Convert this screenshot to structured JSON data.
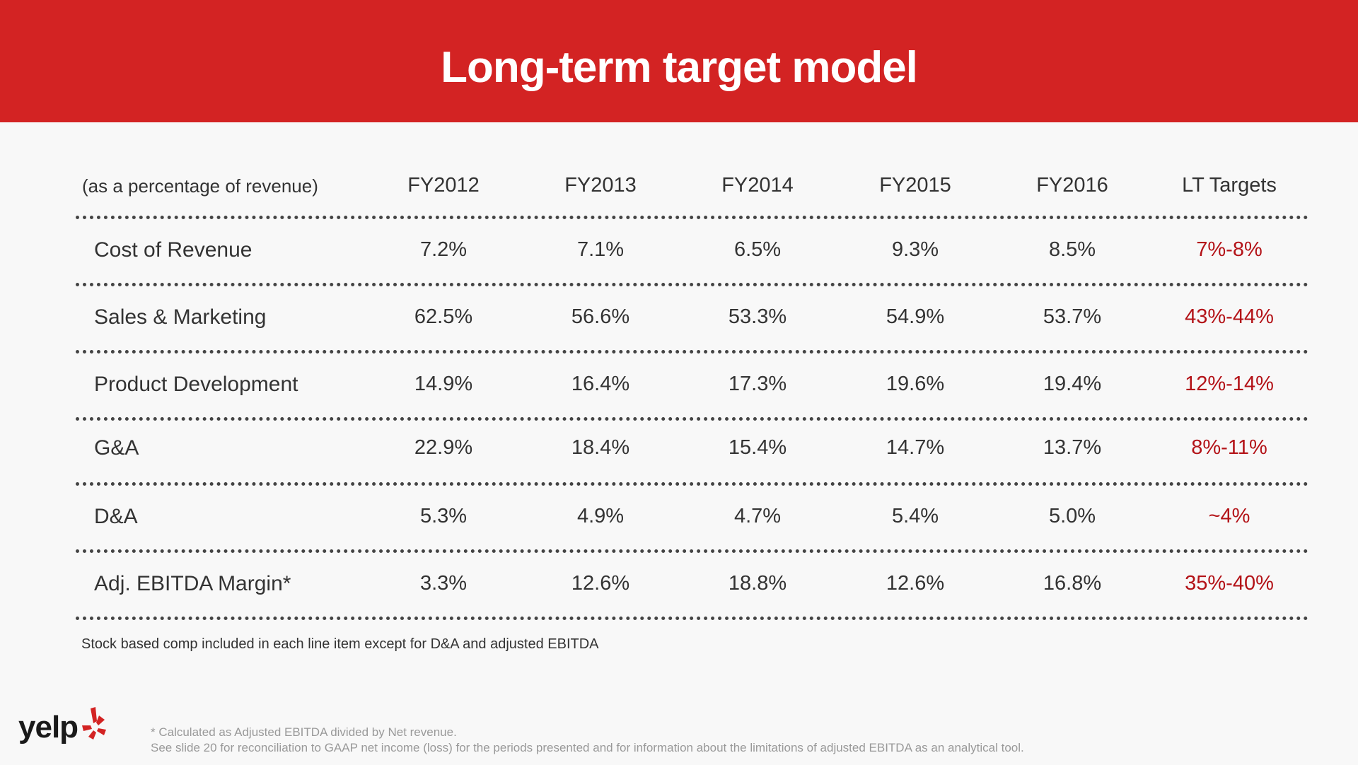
{
  "slide": {
    "title": "Long-term target model"
  },
  "table": {
    "headers": [
      "(as a percentage of revenue)",
      "FY2012",
      "FY2013",
      "FY2014",
      "FY2015",
      "FY2016",
      "LT Targets"
    ],
    "rows": [
      {
        "label": "Cost of Revenue",
        "values": [
          "7.2%",
          "7.1%",
          "6.5%",
          "9.3%",
          "8.5%"
        ],
        "target": "7%-8%"
      },
      {
        "label": "Sales & Marketing",
        "values": [
          "62.5%",
          "56.6%",
          "53.3%",
          "54.9%",
          "53.7%"
        ],
        "target": "43%-44%"
      },
      {
        "label": "Product Development",
        "values": [
          "14.9%",
          "16.4%",
          "17.3%",
          "19.6%",
          "19.4%"
        ],
        "target": "12%-14%"
      },
      {
        "label": "G&A",
        "values": [
          "22.9%",
          "18.4%",
          "15.4%",
          "14.7%",
          "13.7%"
        ],
        "target": "8%-11%"
      },
      {
        "label": "D&A",
        "values": [
          "5.3%",
          "4.9%",
          "4.7%",
          "5.4%",
          "5.0%"
        ],
        "target": "~4%"
      },
      {
        "label": "Adj. EBITDA Margin*",
        "values": [
          "3.3%",
          "12.6%",
          "18.8%",
          "12.6%",
          "16.8%"
        ],
        "target": "35%-40%"
      }
    ]
  },
  "note": "Stock based comp included in each line item except for D&A and adjusted EBITDA",
  "footnotes": [
    "* Calculated as Adjusted EBITDA divided by Net revenue.",
    "See slide 20 for reconciliation to GAAP net income (loss) for the periods presented and for information about the limitations of adjusted EBITDA as an analytical tool."
  ],
  "logo": {
    "text": "yelp",
    "icon": "yelp-burst-icon"
  },
  "colors": {
    "brand_red": "#d32323",
    "target_red": "#b31217",
    "background": "#f8f8f8"
  }
}
